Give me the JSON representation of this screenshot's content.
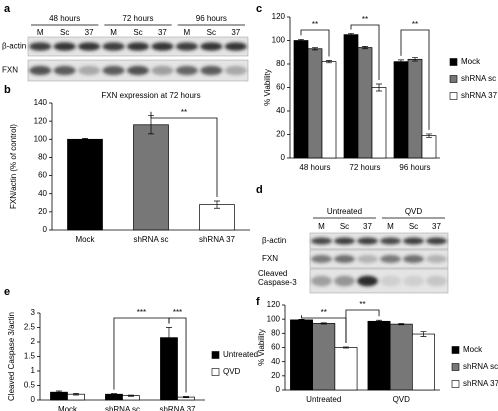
{
  "panel_labels": [
    "a",
    "b",
    "c",
    "d",
    "e",
    "f"
  ],
  "blots": [
    {
      "groups": [
        "48 hours",
        "72 hours",
        "96 hours"
      ],
      "lanes": [
        "M",
        "Sc",
        "37",
        "M",
        "Sc",
        "37",
        "M",
        "Sc",
        "37"
      ],
      "rows": [
        "β-actin",
        "FXN"
      ]
    },
    {
      "groups": [
        "Untreated",
        "QVD"
      ],
      "lanes": [
        "M",
        "Sc",
        "37",
        "M",
        "Sc",
        "37"
      ],
      "rows": [
        "β-actin",
        "FXN",
        "Cleaved Caspase-3"
      ]
    }
  ],
  "chart_data": [
    {
      "type": "bar",
      "title": "FXN expression at 72 hours",
      "y_label": "FXN/actin (% of control)",
      "categories": [
        "Mock",
        "shRNA sc",
        "shRNA 37"
      ],
      "values": [
        100,
        116,
        28
      ],
      "errors": [
        1,
        10,
        4
      ],
      "colors": [
        "#000000",
        "#777777",
        "#ffffff"
      ],
      "ylim": [
        0,
        140
      ],
      "yticks": [
        0,
        20,
        40,
        60,
        80,
        100,
        120,
        140
      ],
      "annotations": [
        "**"
      ]
    },
    {
      "type": "bar",
      "y_label": "% Viability",
      "categories": [
        "48 hours",
        "72 hours",
        "96 hours"
      ],
      "series": [
        {
          "name": "Mock",
          "color": "#000000",
          "values": [
            100,
            105,
            82
          ],
          "errors": [
            1,
            1,
            1.5
          ]
        },
        {
          "name": "shRNA sc",
          "color": "#777777",
          "values": [
            93,
            94,
            84
          ],
          "errors": [
            1,
            1,
            1.5
          ]
        },
        {
          "name": "shRNA 37",
          "color": "#ffffff",
          "values": [
            82,
            60,
            19
          ],
          "errors": [
            1,
            3,
            1.5
          ]
        }
      ],
      "ylim": [
        0,
        120
      ],
      "yticks": [
        0,
        20,
        40,
        60,
        80,
        100,
        120
      ],
      "annotations": [
        "**",
        "**",
        "**"
      ]
    },
    {
      "type": "bar",
      "y_label": "Cleaved Caspase 3/actin",
      "categories": [
        "Mock",
        "shRNA sc",
        "shRNA 37"
      ],
      "series": [
        {
          "name": "Untreated",
          "color": "#000000",
          "values": [
            0.27,
            0.2,
            2.15
          ],
          "errors": [
            0.04,
            0.02,
            0.35
          ]
        },
        {
          "name": "QVD",
          "color": "#ffffff",
          "values": [
            0.2,
            0.15,
            0.1
          ],
          "errors": [
            0.03,
            0.02,
            0.02
          ]
        }
      ],
      "ylim": [
        0,
        3
      ],
      "yticks": [
        0,
        0.5,
        1,
        1.5,
        2,
        2.5,
        3
      ],
      "annotations": [
        "***",
        "***"
      ]
    },
    {
      "type": "bar",
      "y_label": "% Viability",
      "categories": [
        "Untreated",
        "QVD"
      ],
      "series": [
        {
          "name": "Mock",
          "color": "#000000",
          "values": [
            99,
            97
          ],
          "errors": [
            0.8,
            1.5
          ]
        },
        {
          "name": "shRNA sc",
          "color": "#777777",
          "values": [
            94,
            93
          ],
          "errors": [
            0.8,
            1
          ]
        },
        {
          "name": "shRNA 37",
          "color": "#ffffff",
          "values": [
            60,
            79
          ],
          "errors": [
            0.8,
            3.5
          ]
        }
      ],
      "ylim": [
        0,
        120
      ],
      "yticks": [
        0,
        20,
        40,
        60,
        80,
        100,
        120
      ],
      "annotations": [
        "**",
        "**"
      ]
    }
  ]
}
